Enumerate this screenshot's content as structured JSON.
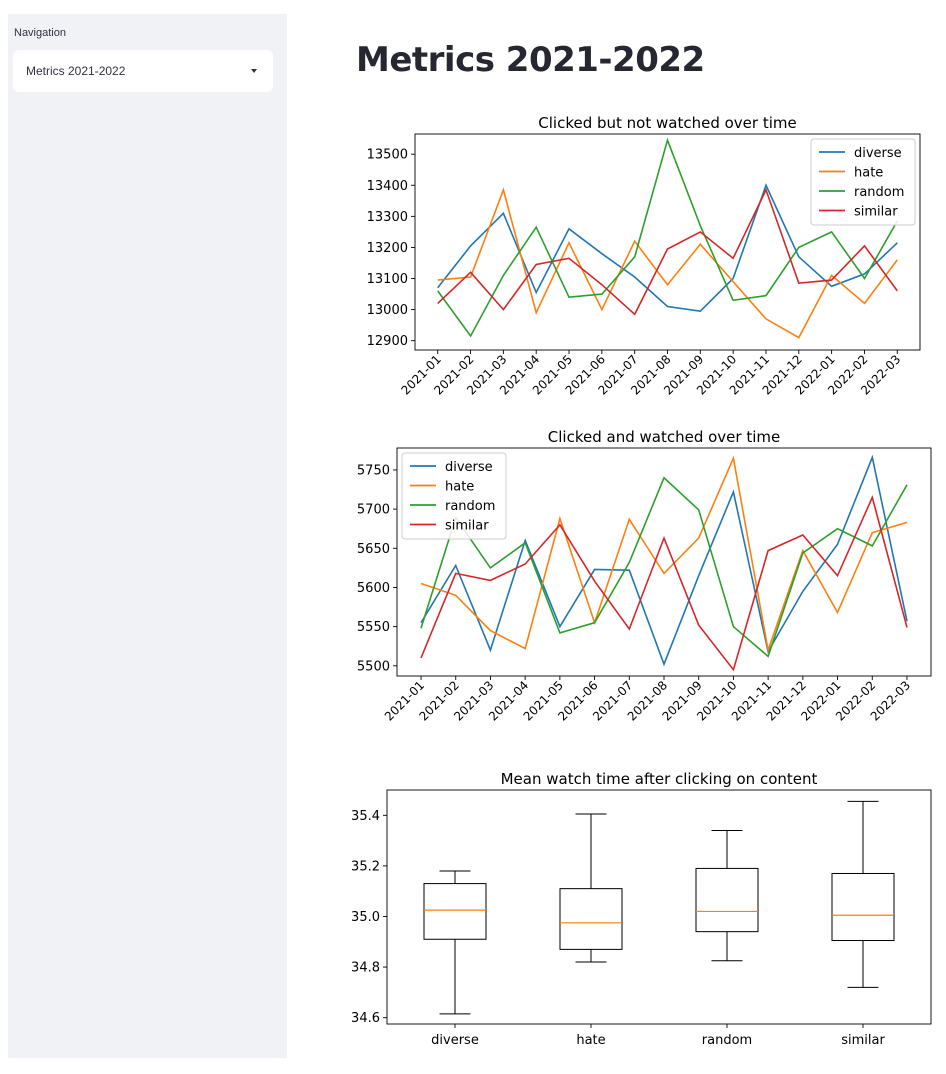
{
  "sidebar": {
    "nav_label": "Navigation",
    "selected_page": "Metrics 2021-2022"
  },
  "main": {
    "title": "Metrics 2021-2022"
  },
  "colors": {
    "diverse": "#1f77b4",
    "hate": "#ff7f0e",
    "random": "#2ca02c",
    "similar": "#d62728",
    "median": "#ff7f0e",
    "sidebar_bg": "#f0f2f6"
  },
  "chart_data": [
    {
      "type": "line",
      "title": "Clicked but not watched over time",
      "xlabel": "",
      "ylabel": "",
      "categories": [
        "2021-01",
        "2021-02",
        "2021-03",
        "2021-04",
        "2021-05",
        "2021-06",
        "2021-07",
        "2021-08",
        "2021-09",
        "2021-10",
        "2021-11",
        "2021-12",
        "2022-01",
        "2022-02",
        "2022-03"
      ],
      "ylim": [
        12870,
        13565
      ],
      "yticks": [
        12900,
        13000,
        13100,
        13200,
        13300,
        13400,
        13500
      ],
      "legend": "top-right",
      "grid": false,
      "series": [
        {
          "name": "diverse",
          "values": [
            13070,
            13205,
            13310,
            13055,
            13260,
            13180,
            13105,
            13010,
            12995,
            13100,
            13400,
            13170,
            13075,
            13115,
            13215
          ]
        },
        {
          "name": "hate",
          "values": [
            13095,
            13105,
            13385,
            12990,
            13215,
            13000,
            13220,
            13080,
            13210,
            13090,
            12970,
            12910,
            13110,
            13020,
            13160
          ]
        },
        {
          "name": "random",
          "values": [
            13060,
            12915,
            13110,
            13265,
            13040,
            13050,
            13170,
            13545,
            13270,
            13030,
            13045,
            13200,
            13250,
            13100,
            13285
          ]
        },
        {
          "name": "similar",
          "values": [
            13020,
            13120,
            13000,
            13145,
            13165,
            13080,
            12985,
            13195,
            13250,
            13165,
            13385,
            13085,
            13095,
            13205,
            13060
          ]
        }
      ]
    },
    {
      "type": "line",
      "title": "Clicked and watched over time",
      "xlabel": "",
      "ylabel": "",
      "categories": [
        "2021-01",
        "2021-02",
        "2021-03",
        "2021-04",
        "2021-05",
        "2021-06",
        "2021-07",
        "2021-08",
        "2021-09",
        "2021-10",
        "2021-11",
        "2021-12",
        "2022-01",
        "2022-02",
        "2022-03"
      ],
      "ylim": [
        5487,
        5778
      ],
      "yticks": [
        5500,
        5550,
        5600,
        5650,
        5700,
        5750
      ],
      "legend": "top-left",
      "grid": false,
      "series": [
        {
          "name": "diverse",
          "values": [
            5555,
            5628,
            5520,
            5660,
            5550,
            5623,
            5622,
            5502,
            5615,
            5722,
            5518,
            5595,
            5655,
            5766,
            5557
          ]
        },
        {
          "name": "hate",
          "values": [
            5605,
            5590,
            5545,
            5522,
            5688,
            5555,
            5687,
            5618,
            5663,
            5765,
            5520,
            5647,
            5568,
            5670,
            5683
          ]
        },
        {
          "name": "random",
          "values": [
            5548,
            5689,
            5625,
            5657,
            5542,
            5555,
            5632,
            5740,
            5699,
            5550,
            5512,
            5644,
            5675,
            5653,
            5731
          ]
        },
        {
          "name": "similar",
          "values": [
            5510,
            5618,
            5609,
            5630,
            5680,
            5608,
            5547,
            5663,
            5552,
            5495,
            5647,
            5667,
            5615,
            5715,
            5549
          ]
        }
      ]
    },
    {
      "type": "box",
      "title": "Mean watch time after clicking on content",
      "xlabel": "",
      "ylabel": "",
      "categories": [
        "diverse",
        "hate",
        "random",
        "similar"
      ],
      "ylim": [
        34.575,
        35.5
      ],
      "yticks": [
        "34.6",
        "34.8",
        "35.0",
        "35.2",
        "35.4"
      ],
      "grid": false,
      "boxes": [
        {
          "name": "diverse",
          "whislo": 34.615,
          "q1": 34.91,
          "med": 35.025,
          "q3": 35.13,
          "whishi": 35.18
        },
        {
          "name": "hate",
          "whislo": 34.82,
          "q1": 34.87,
          "med": 34.975,
          "q3": 35.11,
          "whishi": 35.405
        },
        {
          "name": "random",
          "whislo": 34.825,
          "q1": 34.94,
          "med": 35.02,
          "q3": 35.19,
          "whishi": 35.34
        },
        {
          "name": "similar",
          "whislo": 34.72,
          "q1": 34.905,
          "med": 35.005,
          "q3": 35.17,
          "whishi": 35.455
        }
      ]
    }
  ]
}
